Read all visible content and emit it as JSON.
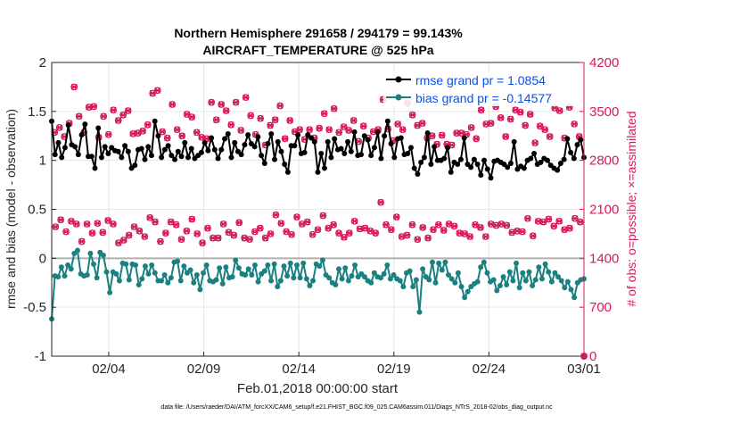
{
  "chart_data": {
    "type": "line",
    "title_line1": "Northern Hemisphere 291658 / 294179 = 99.143%",
    "title_line2": "AIRCRAFT_TEMPERATURE @ 525 hPa",
    "xlabel": "Feb.01,2018 00:00:00 start",
    "ylabel_left": "rmse and bias (model - observation)",
    "ylabel_right": "# of obs: o=possible; ×=assimilated",
    "footnote": "data file: /Users/raeder/DAI/ATM_forcXX/CAM6_setup/f.e21.FHIST_BGC.f09_025.CAM6assim.011/Diags_NTrS_2018-02/obs_diag_output.nc",
    "x_range_days": [
      0,
      28
    ],
    "x_ticks": [
      {
        "day": 3,
        "label": "02/04"
      },
      {
        "day": 8,
        "label": "02/09"
      },
      {
        "day": 13,
        "label": "02/14"
      },
      {
        "day": 18,
        "label": "02/19"
      },
      {
        "day": 23,
        "label": "02/24"
      },
      {
        "day": 28,
        "label": "03/01"
      }
    ],
    "y_left_range": [
      -1,
      2
    ],
    "y_left_ticks": [
      "2",
      "1.5",
      "1",
      "0.5",
      "0",
      "-0.5",
      "-1"
    ],
    "y_left_tick_values": [
      2,
      1.5,
      1,
      0.5,
      0,
      -0.5,
      -1
    ],
    "y_right_range": [
      0,
      4200
    ],
    "y_right_ticks": [
      "4200",
      "3500",
      "2800",
      "2100",
      "1400",
      "700",
      "0"
    ],
    "y_right_tick_values": [
      4200,
      3500,
      2800,
      2100,
      1400,
      700,
      0
    ],
    "grid": true,
    "legend_position": "top-right",
    "colors": {
      "rmse": "#000000",
      "bias": "#1a8080",
      "obs": "#d6195c",
      "legend_text": "#0a50e0",
      "right_axis": "#d6195c",
      "zero_line": "#b0b0b0",
      "grid": "#e6e6e6"
    },
    "series": [
      {
        "name": "rmse grand pr = 1.0854",
        "values": [
          1.4,
          1.06,
          1.18,
          1.03,
          1.13,
          1.36,
          1.16,
          1.14,
          1.06,
          1.26,
          1.37,
          1.04,
          1.04,
          0.92,
          1.33,
          1.03,
          1.14,
          1.07,
          1.13,
          1.1,
          1.09,
          1.03,
          1.15,
          1.09,
          0.92,
          0.95,
          1.11,
          1.12,
          1.01,
          1.14,
          1.05,
          1.4,
          1.25,
          1.03,
          1.11,
          1.15,
          1.05,
          1.01,
          1.09,
          1.04,
          1.18,
          1.03,
          1.12,
          1.02,
          1.05,
          1.08,
          1.18,
          1.1,
          1.23,
          1.11,
          1.02,
          1.11,
          1.22,
          1.27,
          1.03,
          1.18,
          1.09,
          1.06,
          1.16,
          1.26,
          1.17,
          1.14,
          1.24,
          1.05,
          0.97,
          1.17,
          1.27,
          1.01,
          1.19,
          1.09,
          0.96,
          0.88,
          1.15,
          1.15,
          1.26,
          1.07,
          1.08,
          1.26,
          1.23,
          1.19,
          0.88,
          1.07,
          0.92,
          1.19,
          1.03,
          1.22,
          1.11,
          1.12,
          1.07,
          1.19,
          1.09,
          1.29,
          1.05,
          1.06,
          1.25,
          1.21,
          1.05,
          1.13,
          1.29,
          1.02,
          1.25,
          1.4,
          1.17,
          1.03,
          1.22,
          1.23,
          1.06,
          1.07,
          1.13,
          0.92,
          0.86,
          0.98,
          1.03,
          1.28,
          0.96,
          1.14,
          1.0,
          1.0,
          1.02,
          1.13,
          0.88,
          0.98,
          0.96,
          1.01,
          1.23,
          0.96,
          0.93,
          1.01,
          0.96,
          0.85,
          1.0,
          0.91,
          0.82,
          0.99,
          1.0,
          0.98,
          0.96,
          0.93,
          0.97,
          1.19,
          0.91,
          0.94,
          0.92,
          1.0,
          1.02,
          1.07,
          0.96,
          0.98,
          1.02,
          1.0,
          0.95,
          0.92,
          0.9,
          0.97,
          1.01,
          1.22,
          1.08,
          1.02,
          1.16,
          1.21,
          1.03
        ]
      },
      {
        "name": "bias grand pr = -0.14577",
        "values": [
          -0.62,
          -0.18,
          -0.19,
          -0.09,
          -0.18,
          -0.07,
          -0.11,
          0.05,
          0.08,
          -0.16,
          -0.18,
          -0.17,
          0.05,
          -0.06,
          -0.2,
          0.06,
          0.03,
          -0.14,
          -0.35,
          -0.14,
          -0.16,
          -0.23,
          -0.05,
          -0.06,
          -0.22,
          -0.06,
          -0.07,
          -0.27,
          -0.21,
          -0.08,
          -0.16,
          -0.07,
          -0.15,
          -0.23,
          -0.23,
          -0.17,
          -0.25,
          -0.2,
          -0.04,
          -0.03,
          -0.23,
          -0.08,
          -0.15,
          -0.12,
          -0.25,
          -0.17,
          -0.32,
          -0.15,
          -0.07,
          -0.23,
          -0.24,
          -0.22,
          -0.1,
          -0.26,
          -0.09,
          -0.2,
          -0.19,
          -0.02,
          -0.1,
          -0.16,
          -0.17,
          -0.11,
          -0.17,
          -0.07,
          -0.24,
          -0.16,
          -0.13,
          -0.07,
          -0.23,
          -0.06,
          -0.29,
          -0.23,
          -0.08,
          -0.18,
          -0.05,
          -0.2,
          -0.07,
          -0.2,
          -0.05,
          -0.21,
          -0.28,
          -0.23,
          -0.06,
          -0.08,
          -0.02,
          -0.17,
          -0.2,
          -0.25,
          -0.27,
          -0.11,
          -0.21,
          -0.1,
          -0.23,
          -0.18,
          -0.07,
          -0.19,
          -0.16,
          -0.19,
          -0.23,
          -0.25,
          -0.15,
          -0.19,
          -0.2,
          -0.16,
          -0.07,
          -0.21,
          -0.17,
          -0.21,
          -0.23,
          -0.29,
          -0.15,
          -0.13,
          -0.29,
          -0.22,
          -0.55,
          -0.11,
          -0.19,
          -0.22,
          -0.04,
          -0.25,
          -0.05,
          -0.12,
          -0.04,
          -0.17,
          -0.21,
          -0.25,
          -0.15,
          -0.29,
          -0.4,
          -0.34,
          -0.29,
          -0.26,
          -0.24,
          -0.09,
          -0.04,
          -0.15,
          -0.24,
          -0.22,
          -0.33,
          -0.28,
          -0.19,
          -0.27,
          -0.14,
          -0.23,
          -0.05,
          -0.3,
          -0.15,
          -0.23,
          -0.14,
          -0.28,
          -0.22,
          -0.09,
          -0.21,
          -0.06,
          -0.14,
          -0.24,
          -0.15,
          -0.19,
          -0.23,
          -0.3,
          -0.24,
          -0.32,
          -0.4,
          -0.25,
          -0.22,
          -0.21
        ]
      },
      {
        "name": "obs possible (upper band, # of obs)",
        "values": [
          3200,
          3270,
          3140,
          3330,
          3850,
          3430,
          3200,
          3560,
          3570,
          3130,
          3430,
          3170,
          3520,
          3370,
          3450,
          3510,
          3180,
          3190,
          3220,
          3310,
          3760,
          3800,
          3210,
          3120,
          3600,
          3240,
          3150,
          3460,
          3420,
          3200,
          3130,
          3110,
          3630,
          3380,
          3600,
          3510,
          3310,
          3630,
          3230,
          3700,
          3440,
          3170,
          3400,
          3020,
          3300,
          3380,
          3580,
          3110,
          3370,
          3210,
          3240,
          3100,
          3240,
          3120,
          3260,
          3470,
          3240,
          3540,
          3200,
          3280,
          3230,
          3370,
          3070,
          3290,
          3120,
          3210,
          3240,
          3670,
          3250,
          3080,
          3320,
          3240,
          3620,
          3450,
          3300,
          3330,
          3120,
          3150,
          3030,
          3160,
          3030,
          3020,
          3190,
          3190,
          3170,
          3270,
          3110,
          3520,
          3320,
          3330,
          3570,
          3410,
          3140,
          3390,
          3520,
          3490,
          3300,
          3460,
          3050,
          3290,
          3240,
          3140,
          3550,
          3510,
          3120,
          3560,
          3320,
          3140
        ]
      },
      {
        "name": "obs possible (lower band, # of obs)",
        "values": [
          1850,
          1950,
          1780,
          1930,
          1890,
          1640,
          1890,
          1760,
          1900,
          1770,
          1940,
          1890,
          1620,
          1660,
          1730,
          1850,
          1790,
          1710,
          1980,
          1920,
          1640,
          1760,
          1920,
          1880,
          1670,
          1790,
          1960,
          1750,
          1620,
          1830,
          1690,
          1690,
          1890,
          1770,
          1730,
          1910,
          1690,
          1670,
          1780,
          1830,
          1690,
          1750,
          2020,
          1900,
          1780,
          1740,
          1990,
          1890,
          1920,
          1740,
          1810,
          2010,
          1830,
          1880,
          1760,
          1700,
          1760,
          1930,
          1820,
          1830,
          1790,
          1760,
          2200,
          1880,
          1810,
          1990,
          1710,
          1730,
          1880,
          1670,
          1840,
          1690,
          1810,
          1880,
          1800,
          1890,
          1860,
          1760,
          1750,
          1710,
          1880,
          1840,
          1710,
          1890,
          1870,
          1890,
          1870,
          1770,
          1790,
          1780,
          1970,
          1720,
          1930,
          1920,
          1960,
          1860,
          1930,
          1810,
          1830,
          1970,
          1920
        ]
      }
    ]
  }
}
